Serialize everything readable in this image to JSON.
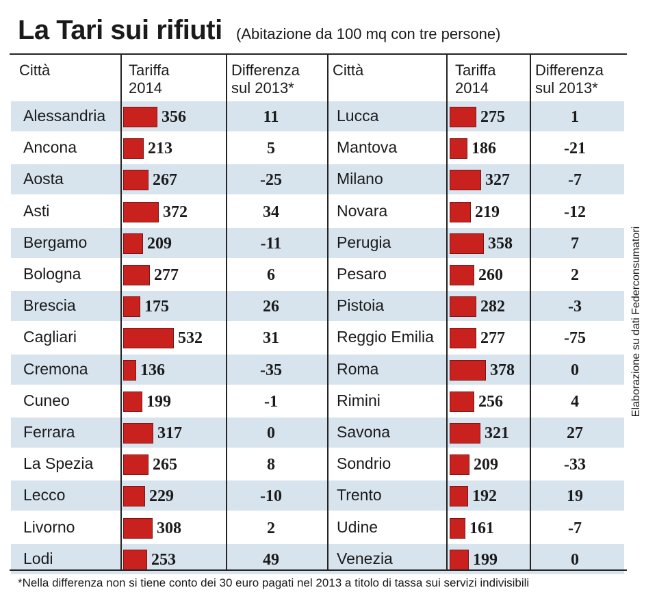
{
  "header": {
    "title": "La Tari sui rifiuti",
    "subtitle": "(Abitazione da 100 mq con tre persone)"
  },
  "columns": {
    "city": "Città",
    "tariff_line1": "Tariffa",
    "tariff_line2": "2014",
    "diff_line1": "Differenza",
    "diff_line2": "sul 2013*"
  },
  "footnote": "*Nella differenza non si tiene conto dei 30 euro pagati nel 2013 a titolo di tassa sui servizi indivisibili",
  "source": "Elaborazione su dati Federconsumatori",
  "colors": {
    "bar": "#c8211e",
    "band": "#d7e4ee"
  },
  "chart_data": {
    "type": "table",
    "bar_column": "Tariffa 2014",
    "groups": [
      {
        "rows": [
          {
            "city": "Alessandria",
            "tariff": 356,
            "diff": "11"
          },
          {
            "city": "Ancona",
            "tariff": 213,
            "diff": "5"
          },
          {
            "city": "Aosta",
            "tariff": 267,
            "diff": "-25"
          },
          {
            "city": "Asti",
            "tariff": 372,
            "diff": "34"
          },
          {
            "city": "Bergamo",
            "tariff": 209,
            "diff": "-11"
          },
          {
            "city": "Bologna",
            "tariff": 277,
            "diff": "6"
          },
          {
            "city": "Brescia",
            "tariff": 175,
            "diff": "26"
          },
          {
            "city": "Cagliari",
            "tariff": 532,
            "diff": "31"
          },
          {
            "city": "Cremona",
            "tariff": 136,
            "diff": "-35"
          },
          {
            "city": "Cuneo",
            "tariff": 199,
            "diff": "-1"
          },
          {
            "city": "Ferrara",
            "tariff": 317,
            "diff": "0"
          },
          {
            "city": "La Spezia",
            "tariff": 265,
            "diff": "8"
          },
          {
            "city": "Lecco",
            "tariff": 229,
            "diff": "-10"
          },
          {
            "city": "Livorno",
            "tariff": 308,
            "diff": "2"
          },
          {
            "city": "Lodi",
            "tariff": 253,
            "diff": "49"
          }
        ]
      },
      {
        "rows": [
          {
            "city": "Lucca",
            "tariff": 275,
            "diff": "1"
          },
          {
            "city": "Mantova",
            "tariff": 186,
            "diff": "-21"
          },
          {
            "city": "Milano",
            "tariff": 327,
            "diff": "-7"
          },
          {
            "city": "Novara",
            "tariff": 219,
            "diff": "-12"
          },
          {
            "city": "Perugia",
            "tariff": 358,
            "diff": "7"
          },
          {
            "city": "Pesaro",
            "tariff": 260,
            "diff": "2"
          },
          {
            "city": "Pistoia",
            "tariff": 282,
            "diff": "-3"
          },
          {
            "city": "Reggio Emilia",
            "tariff": 277,
            "diff": "-75"
          },
          {
            "city": "Roma",
            "tariff": 378,
            "diff": "0"
          },
          {
            "city": "Rimini",
            "tariff": 256,
            "diff": "4"
          },
          {
            "city": "Savona",
            "tariff": 321,
            "diff": "27"
          },
          {
            "city": "Sondrio",
            "tariff": 209,
            "diff": "-33"
          },
          {
            "city": "Trento",
            "tariff": 192,
            "diff": "19"
          },
          {
            "city": "Udine",
            "tariff": 161,
            "diff": "-7"
          },
          {
            "city": "Venezia",
            "tariff": 199,
            "diff": "0"
          }
        ]
      }
    ]
  }
}
